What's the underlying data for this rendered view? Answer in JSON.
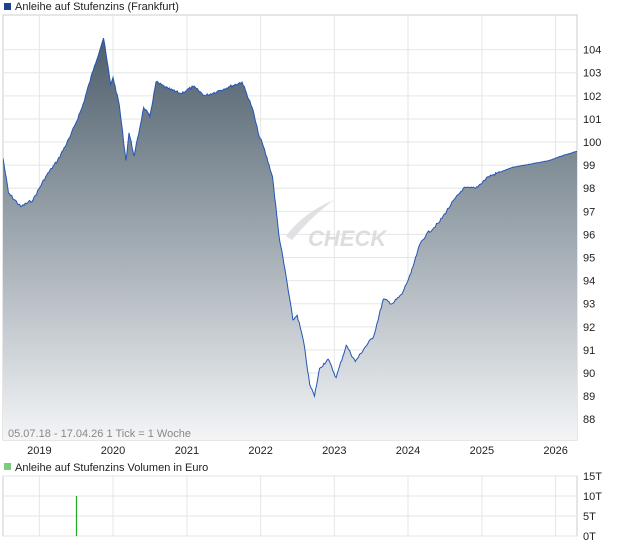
{
  "chart_data": [
    {
      "type": "area",
      "title": "Anleihe auf Stufenzins (Frankfurt)",
      "legend_color": "#1f3f8f",
      "line_color": "#2456b4",
      "fill_top": "#4d5e6b",
      "fill_bottom": "#f3f5f7",
      "grid": true,
      "legend": "top-left",
      "ylim": [
        87.1,
        105.5
      ],
      "yticks": [
        88,
        89,
        90,
        91,
        92,
        93,
        94,
        95,
        96,
        97,
        98,
        99,
        100,
        101,
        102,
        103,
        104
      ],
      "xlim": [
        "2018-07-05",
        "2026-04-17"
      ],
      "xticks": [
        "2019",
        "2020",
        "2021",
        "2022",
        "2023",
        "2024",
        "2025",
        "2026"
      ],
      "info": "05.07.18 - 17.04.26   1 Tick = 1 Woche",
      "watermark": "CHECK",
      "x": [
        "2018-07-05",
        "2018-08-01",
        "2018-10-01",
        "2018-12-01",
        "2019-02-01",
        "2019-04-01",
        "2019-06-01",
        "2019-08-01",
        "2019-10-01",
        "2019-11-15",
        "2019-12-20",
        "2020-01-01",
        "2020-02-01",
        "2020-03-05",
        "2020-03-20",
        "2020-04-15",
        "2020-06-01",
        "2020-07-01",
        "2020-08-01",
        "2020-10-01",
        "2020-12-01",
        "2021-02-01",
        "2021-04-01",
        "2021-06-01",
        "2021-08-01",
        "2021-10-01",
        "2021-11-20",
        "2021-12-20",
        "2022-01-15",
        "2022-03-01",
        "2022-04-01",
        "2022-05-01",
        "2022-06-10",
        "2022-07-01",
        "2022-08-01",
        "2022-09-01",
        "2022-09-25",
        "2022-10-20",
        "2022-12-01",
        "2023-01-10",
        "2023-03-01",
        "2023-04-15",
        "2023-06-01",
        "2023-07-15",
        "2023-09-01",
        "2023-10-15",
        "2023-12-01",
        "2024-01-15",
        "2024-03-01",
        "2024-04-01",
        "2024-06-01",
        "2024-08-01",
        "2024-10-01",
        "2024-12-01",
        "2025-02-01",
        "2025-04-01",
        "2025-06-01",
        "2025-08-01",
        "2025-10-01",
        "2025-12-01",
        "2026-02-01",
        "2026-04-17"
      ],
      "values": [
        99.3,
        97.8,
        97.2,
        97.5,
        98.5,
        99.2,
        100.2,
        101.5,
        103.3,
        104.5,
        102.5,
        102.8,
        101.6,
        99.2,
        100.4,
        99.4,
        101.5,
        101.1,
        102.6,
        102.3,
        102.1,
        102.4,
        102.0,
        102.2,
        102.4,
        102.6,
        101.5,
        100.4,
        99.8,
        98.5,
        96.0,
        94.5,
        92.3,
        92.5,
        91.4,
        89.5,
        89.0,
        90.2,
        90.6,
        89.8,
        91.2,
        90.5,
        91.1,
        91.6,
        93.2,
        93.0,
        93.4,
        94.3,
        95.6,
        96.0,
        96.5,
        97.3,
        98.0,
        98.0,
        98.5,
        98.7,
        98.9,
        99.0,
        99.1,
        99.2,
        99.4,
        99.6
      ]
    },
    {
      "type": "bar",
      "title": "Anleihe auf Stufenzins Volumen in Euro",
      "legend_color": "#7dcc7d",
      "bar_color": "#22aa22",
      "ylim": [
        0,
        15
      ],
      "yticks": [
        "0T",
        "5T",
        "10T",
        "15T"
      ],
      "tick_values": [
        0,
        5,
        10,
        15
      ],
      "x": [
        "2019-07-01"
      ],
      "values": [
        10
      ]
    }
  ]
}
